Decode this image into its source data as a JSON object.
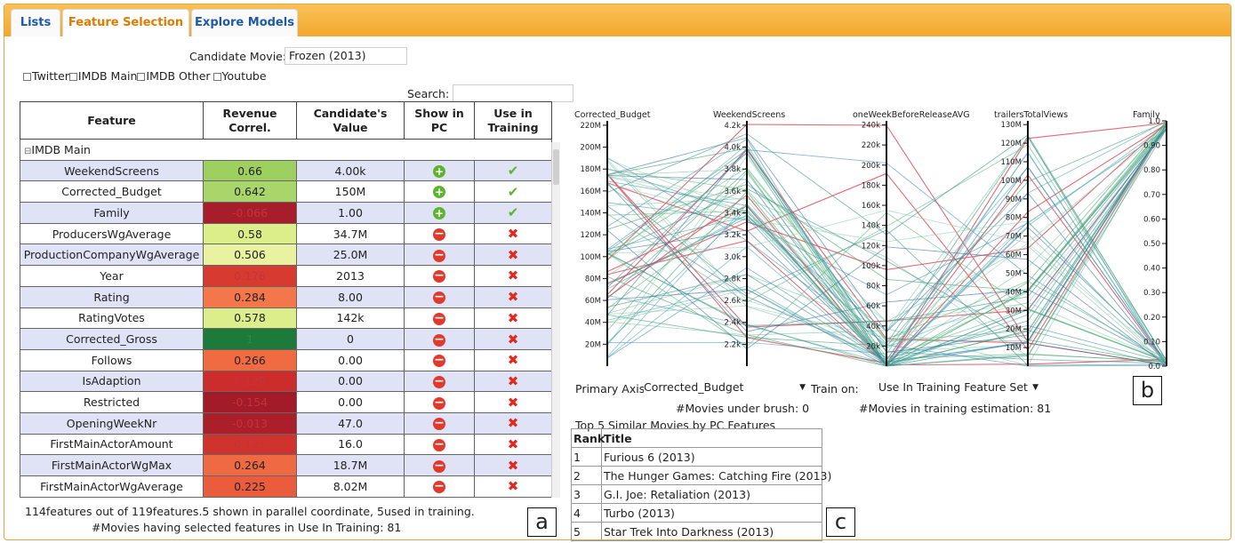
{
  "tabs": [
    {
      "label": "Lists",
      "active": false
    },
    {
      "label": "Feature Selection",
      "active": true
    },
    {
      "label": "Explore Models",
      "active": false
    }
  ],
  "candidate": {
    "label": "Candidate Movie:",
    "value": "Frozen (2013)"
  },
  "sources": [
    "Twitter",
    "IMDB Main",
    "IMDB Other",
    "Youtube"
  ],
  "search": {
    "label": "Search:",
    "value": ""
  },
  "table": {
    "headers": [
      [
        "Feature"
      ],
      [
        "Revenue",
        "Correl."
      ],
      [
        "Candidate's",
        "Value"
      ],
      [
        "Show in",
        "PC"
      ],
      [
        "Use in",
        "Training"
      ]
    ],
    "group": "IMDB Main",
    "group_toggle": "⊟",
    "rows": [
      {
        "feature": "WeekendScreens",
        "correl": "0.66",
        "value": "4.00k",
        "show": "plus",
        "use": "check",
        "color": "#9ed060",
        "alt": true
      },
      {
        "feature": "Corrected_Budget",
        "correl": "0.642",
        "value": "150M",
        "show": "plus",
        "use": "check",
        "color": "#a9d66a",
        "alt": false
      },
      {
        "feature": "Family",
        "correl": "-0.066",
        "value": "1.00",
        "show": "plus",
        "use": "check",
        "color": "#a71e2a",
        "alt": true
      },
      {
        "feature": "ProducersWgAverage",
        "correl": "0.58",
        "value": "34.7M",
        "show": "minus",
        "use": "cross",
        "color": "#dbee8a",
        "alt": false
      },
      {
        "feature": "ProductionCompanyWgAverage",
        "correl": "0.506",
        "value": "25.0M",
        "show": "minus",
        "use": "cross",
        "color": "#e8f2a0",
        "alt": true
      },
      {
        "feature": "Year",
        "correl": "0.176",
        "value": "2013",
        "show": "minus",
        "use": "cross",
        "color": "#d73b30",
        "alt": false
      },
      {
        "feature": "Rating",
        "correl": "0.284",
        "value": "8.00",
        "show": "minus",
        "use": "cross",
        "color": "#f3774a",
        "alt": true
      },
      {
        "feature": "RatingVotes",
        "correl": "0.578",
        "value": "142k",
        "show": "minus",
        "use": "cross",
        "color": "#dcee8c",
        "alt": false
      },
      {
        "feature": "Corrected_Gross",
        "correl": "1",
        "value": "0",
        "show": "minus",
        "use": "cross",
        "color": "#1e7a3a",
        "alt": true
      },
      {
        "feature": "Follows",
        "correl": "0.266",
        "value": "0.00",
        "show": "minus",
        "use": "cross",
        "color": "#f06a42",
        "alt": false
      },
      {
        "feature": "IsAdaption",
        "correl": "0.129",
        "value": "0.00",
        "show": "minus",
        "use": "cross",
        "color": "#cc2d2c",
        "alt": true
      },
      {
        "feature": "Restricted",
        "correl": "-0.154",
        "value": "0.00",
        "show": "minus",
        "use": "cross",
        "color": "#a31a28",
        "alt": false
      },
      {
        "feature": "OpeningWeekNr",
        "correl": "-0.013",
        "value": "47.0",
        "show": "minus",
        "use": "cross",
        "color": "#aa1f2a",
        "alt": true
      },
      {
        "feature": "FirstMainActorAmount",
        "correl": "0.123",
        "value": "16.0",
        "show": "minus",
        "use": "cross",
        "color": "#d0322d",
        "alt": false
      },
      {
        "feature": "FirstMainActorWgMax",
        "correl": "0.264",
        "value": "18.7M",
        "show": "minus",
        "use": "cross",
        "color": "#ef6a43",
        "alt": true
      },
      {
        "feature": "FirstMainActorWgAverage",
        "correl": "0.225",
        "value": "8.02M",
        "show": "minus",
        "use": "cross",
        "color": "#ea5c3c",
        "alt": false
      }
    ]
  },
  "footer": {
    "line1": "114features out of 119features.5 shown in parallel coordinate, 5used in training.",
    "line2": "#Movies having selected features in Use In Training: 81"
  },
  "labels": {
    "a": "a",
    "b": "b",
    "c": "c"
  },
  "chart_data": {
    "type": "parallel-coordinates",
    "axes": [
      {
        "name": "Corrected_Budget",
        "ticks": [
          "20M",
          "40M",
          "60M",
          "80M",
          "100M",
          "120M",
          "140M",
          "160M",
          "180M",
          "200M",
          "220M"
        ],
        "range": [
          0,
          220000000
        ]
      },
      {
        "name": "WeekendScreens",
        "ticks": [
          "2.2k",
          "2.4k",
          "2.6k",
          "2.8k",
          "3.0k",
          "3.2k",
          "3.4k",
          "3.6k",
          "3.8k",
          "4.0k",
          "4.2k"
        ],
        "range": [
          2000,
          4200
        ]
      },
      {
        "name": "oneWeekBeforeReleaseAVG",
        "ticks": [
          "20k",
          "40k",
          "60k",
          "80k",
          "100k",
          "120k",
          "140k",
          "160k",
          "180k",
          "200k",
          "220k",
          "240k"
        ],
        "range": [
          0,
          250000
        ]
      },
      {
        "name": "trailersTotalViews",
        "ticks": [
          "10M",
          "20M",
          "30M",
          "40M",
          "50M",
          "60M",
          "70M",
          "80M",
          "90M",
          "100M",
          "110M",
          "120M",
          "130M"
        ],
        "range": [
          0,
          130000000
        ]
      },
      {
        "name": "Family",
        "ticks": [
          "0.0",
          "0.10",
          "0.20",
          "0.30",
          "0.40",
          "0.50",
          "0.60",
          "0.70",
          "0.80",
          "0.90",
          "1.0"
        ],
        "range": [
          0,
          1
        ]
      }
    ],
    "lines_note": "81 movies; highlighted lines red, others teal/green/blue"
  },
  "pc_controls": {
    "primary_label": "Primary Axis",
    "primary_value": "Corrected_Budget",
    "train_label": "Train on:",
    "train_value": "Use In Training Feature Set",
    "brush_text": "#Movies under brush: 0",
    "training_text": "#Movies in training estimation: 81"
  },
  "similar": {
    "title": "Top 5 Similar Movies by PC Features",
    "headers": [
      "Rank",
      "Title"
    ],
    "rows": [
      {
        "rank": "1",
        "title": "Furious 6 (2013)"
      },
      {
        "rank": "2",
        "title": "The Hunger Games: Catching Fire (2013)"
      },
      {
        "rank": "3",
        "title": "G.I. Joe: Retaliation (2013)"
      },
      {
        "rank": "4",
        "title": "Turbo (2013)"
      },
      {
        "rank": "5",
        "title": "Star Trek Into Darkness (2013)"
      }
    ]
  }
}
